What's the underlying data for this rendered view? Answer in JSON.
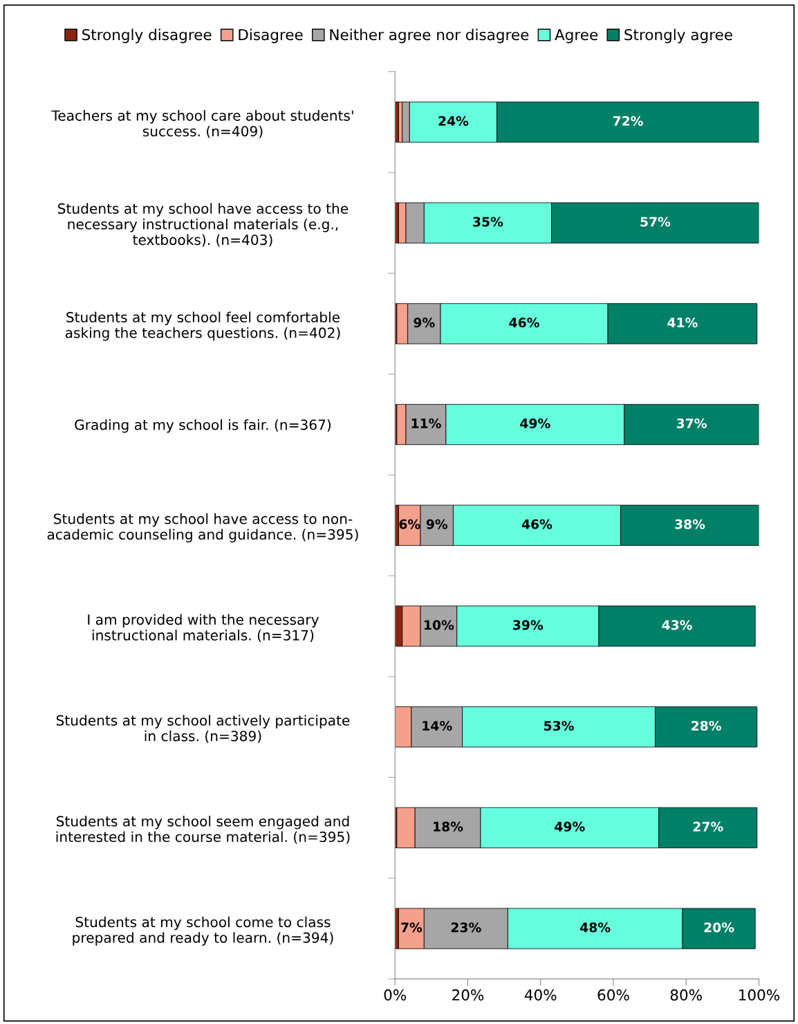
{
  "chart_data": {
    "type": "bar",
    "orientation": "horizontal",
    "stacked": true,
    "categories": [
      "Teachers at my school care about students'\nsuccess. (n=409)",
      "Students at my school have access to the\nnecessary instructional materials (e.g.,\ntextbooks). (n=403)",
      "Students at my school feel comfortable\nasking the teachers questions. (n=402)",
      "Grading at my school is fair. (n=367)",
      "Students at my school have access to non-\nacademic counseling and guidance. (n=395)",
      "I am provided with the necessary\ninstructional materials. (n=317)",
      "Students at my school actively participate\nin class. (n=389)",
      "Students at my school seem engaged and\ninterested in the course material. (n=395)",
      "Students at my school come to class\nprepared and ready to learn. (n=394)"
    ],
    "series": [
      {
        "name": "Strongly disagree",
        "color": "#8b2510",
        "values": [
          1,
          1,
          0.5,
          0.5,
          1,
          2,
          0,
          0.5,
          1
        ],
        "value_labels": [
          null,
          null,
          null,
          null,
          null,
          null,
          null,
          null,
          null
        ]
      },
      {
        "name": "Disagree",
        "color": "#f4a08c",
        "values": [
          1,
          2,
          3,
          2.5,
          6,
          5,
          4.5,
          5,
          7
        ],
        "value_labels": [
          null,
          null,
          null,
          null,
          "6%",
          null,
          null,
          null,
          "7%"
        ]
      },
      {
        "name": "Neither agree nor disagree",
        "color": "#a6a6a6",
        "values": [
          2,
          5,
          9,
          11,
          9,
          10,
          14,
          18,
          23
        ],
        "value_labels": [
          null,
          null,
          "9%",
          "11%",
          "9%",
          "10%",
          "14%",
          "18%",
          "23%"
        ]
      },
      {
        "name": "Agree",
        "color": "#66ffdd",
        "values": [
          24,
          35,
          46,
          49,
          46,
          39,
          53,
          49,
          48
        ],
        "value_labels": [
          "24%",
          "35%",
          "46%",
          "49%",
          "46%",
          "39%",
          "53%",
          "49%",
          "48%"
        ]
      },
      {
        "name": "Strongly agree",
        "color": "#008066",
        "values": [
          72,
          57,
          41,
          37,
          38,
          43,
          28,
          27,
          20
        ],
        "value_labels": [
          "72%",
          "57%",
          "41%",
          "37%",
          "38%",
          "43%",
          "28%",
          "27%",
          "20%"
        ]
      }
    ],
    "xlim": [
      0,
      100
    ],
    "xticks": [
      {
        "value": 0,
        "label": "0%"
      },
      {
        "value": 20,
        "label": "20%"
      },
      {
        "value": 40,
        "label": "40%"
      },
      {
        "value": 60,
        "label": "60%"
      },
      {
        "value": 80,
        "label": "80%"
      },
      {
        "value": 100,
        "label": "100%"
      }
    ],
    "grid": false,
    "legend": "top"
  }
}
